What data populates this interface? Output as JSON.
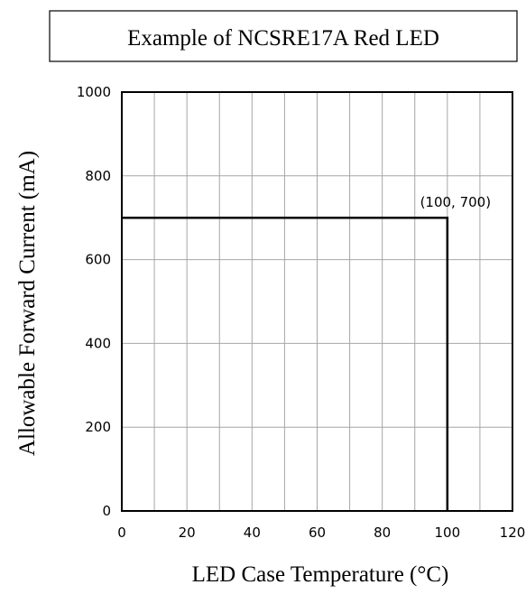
{
  "chart_data": {
    "type": "line",
    "title": "Example of NCSRE17A Red LED",
    "xlabel": "LED Case Temperature (°C)",
    "ylabel": "Allowable Forward Current (mA)",
    "xlim": [
      0,
      120
    ],
    "ylim": [
      0,
      1000
    ],
    "x_ticks": [
      0,
      20,
      40,
      60,
      80,
      100,
      120
    ],
    "y_ticks": [
      0,
      200,
      400,
      600,
      800,
      1000
    ],
    "x_tick_labels": [
      "0",
      "20",
      "40",
      "60",
      "80",
      "100",
      "120"
    ],
    "y_tick_labels": [
      "0",
      "200",
      "400",
      "600",
      "800",
      "1000"
    ],
    "grid": true,
    "grid_x_step": 10,
    "series": [
      {
        "x": [
          0,
          100,
          100
        ],
        "y": [
          700,
          700,
          0
        ],
        "color": "#000000"
      }
    ],
    "annotations": [
      {
        "text": "(100, 700)",
        "x": 100,
        "y": 700
      }
    ]
  }
}
